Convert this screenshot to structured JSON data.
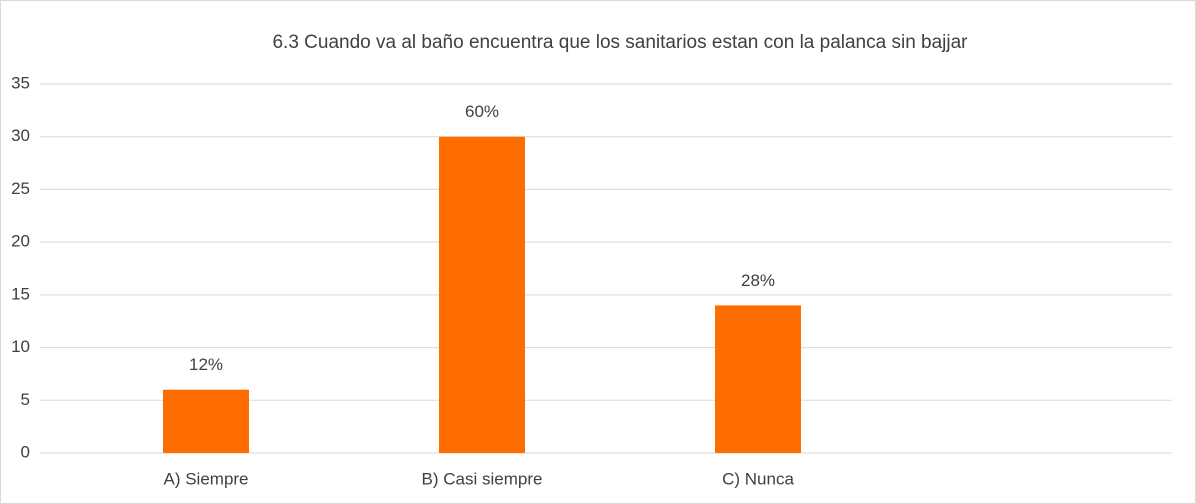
{
  "chart_data": {
    "type": "bar",
    "title": "6.3 Cuando va al baño encuentra que los sanitarios estan con la palanca sin bajjar",
    "categories": [
      "A) Siempre",
      "B) Casi siempre",
      "C) Nunca",
      null
    ],
    "values": [
      6,
      30,
      14,
      null
    ],
    "value_labels": [
      "12%",
      "60%",
      "28%",
      null
    ],
    "color": "#ff6d00",
    "ylim": [
      0,
      35
    ],
    "yticks": [
      0,
      5,
      10,
      15,
      20,
      25,
      30,
      35
    ],
    "grid": true
  }
}
